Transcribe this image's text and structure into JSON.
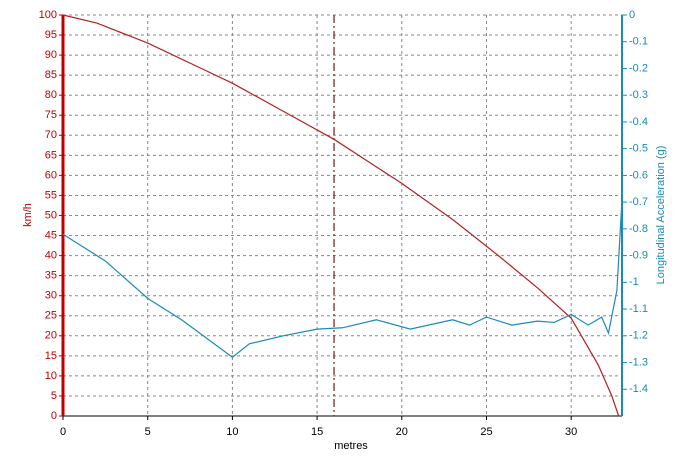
{
  "chart_data": {
    "type": "line",
    "xlabel": "metres",
    "ylabel": "km/h",
    "y2label": "Longitudinal Acceleration (g)",
    "xlim": [
      0,
      33
    ],
    "xticks": [
      0,
      5,
      10,
      15,
      20,
      25,
      30
    ],
    "ylim": [
      0,
      100
    ],
    "yticks": [
      0,
      5,
      10,
      15,
      20,
      25,
      30,
      35,
      40,
      45,
      50,
      55,
      60,
      65,
      70,
      75,
      80,
      85,
      90,
      95,
      100
    ],
    "y2lim": [
      -1.5,
      0
    ],
    "y2ticks": [
      0,
      -0.1,
      -0.2,
      -0.3,
      -0.4,
      -0.5,
      -0.6,
      -0.7,
      -0.8,
      -0.9,
      -1,
      -1.1,
      -1.2,
      -1.3,
      -1.4
    ],
    "grid": true,
    "cursor_x": 16,
    "cursor_color": "#7a1a1a",
    "y_axis_color": "#c00000",
    "y2_axis_color": "#1a8ab8",
    "series": [
      {
        "color": "#b22222",
        "axis": "y",
        "x": [
          0,
          2,
          5,
          8,
          10,
          13,
          16,
          20,
          23,
          25.7,
          28,
          30,
          31.6,
          32.4,
          32.8
        ],
        "values": [
          100,
          98,
          93,
          87,
          83,
          76,
          69,
          58,
          49,
          40,
          32,
          24.4,
          12.7,
          5,
          0
        ]
      },
      {
        "color": "#1a8ab8",
        "axis": "y2",
        "x": [
          0,
          2.5,
          5,
          7,
          10,
          11,
          13,
          15,
          16.5,
          18.5,
          20.5,
          23,
          24,
          25,
          26.5,
          28,
          29,
          30,
          31,
          31.8,
          32.2,
          32.7,
          33
        ],
        "values": [
          -0.82,
          -0.92,
          -1.06,
          -1.14,
          -1.28,
          -1.23,
          -1.2,
          -1.175,
          -1.17,
          -1.14,
          -1.175,
          -1.14,
          -1.16,
          -1.13,
          -1.16,
          -1.145,
          -1.15,
          -1.12,
          -1.16,
          -1.13,
          -1.19,
          -1.03,
          -0.69
        ]
      }
    ]
  }
}
